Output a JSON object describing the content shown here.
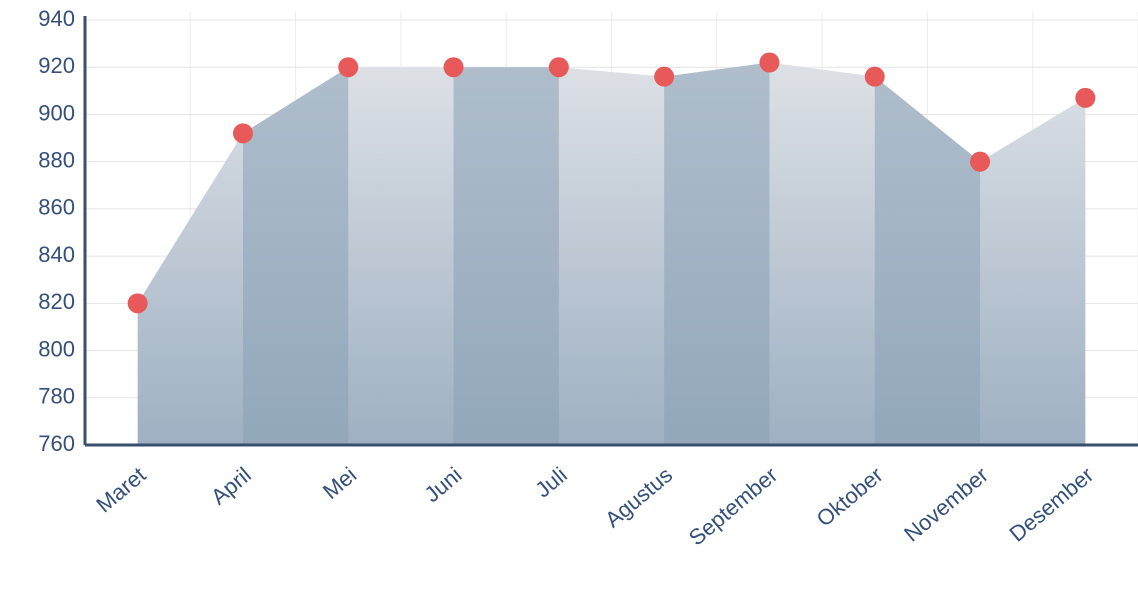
{
  "chart_data": {
    "type": "area",
    "categories": [
      "Maret",
      "April",
      "Mei",
      "Juni",
      "Juli",
      "Agustus",
      "September",
      "Oktober",
      "November",
      "Desember"
    ],
    "values": [
      820,
      892,
      920,
      920,
      920,
      916,
      922,
      916,
      880,
      907
    ],
    "color": "#e85a5a",
    "ylim": [
      760,
      940
    ],
    "yticks": [
      760,
      780,
      800,
      820,
      840,
      860,
      880,
      900,
      920,
      940
    ],
    "grid": true
  }
}
